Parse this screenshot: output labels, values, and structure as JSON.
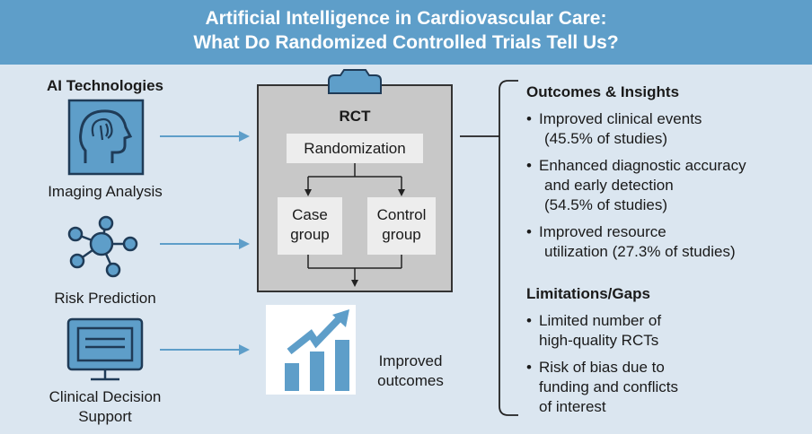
{
  "header": {
    "line1": "Artificial Intelligence in Cardiovascular Care:",
    "line2": "What Do Randomized Controlled Trials Tell Us?"
  },
  "left": {
    "heading": "AI Technologies",
    "items": [
      {
        "label": "Imaging Analysis",
        "icon": "head-brain-icon"
      },
      {
        "label": "Risk Prediction",
        "icon": "network-nodes-icon"
      },
      {
        "label": "Clinical Decision",
        "label2": "Support",
        "icon": "monitor-icon"
      }
    ]
  },
  "center": {
    "rct_title": "RCT",
    "randomization": "Randomization",
    "case_group": [
      "Case",
      "group"
    ],
    "control_group": [
      "Control",
      "group"
    ],
    "outcome_label": [
      "Improved",
      "outcomes"
    ]
  },
  "right": {
    "outcomes_heading": "Outcomes & Insights",
    "outcomes": [
      [
        "Improved clinical events",
        "(45.5% of studies)"
      ],
      [
        "Enhanced diagnostic accuracy",
        "and early detection",
        "(54.5% of studies)"
      ],
      [
        "Improved resource",
        "utilization (27.3% of studies)"
      ]
    ],
    "limitations_heading": "Limitations/Gaps",
    "limitations": [
      [
        "Limited number of",
        "high-quality RCTs"
      ],
      [
        "Risk of bias due to",
        "funding and conflicts",
        "of interest"
      ]
    ]
  },
  "colors": {
    "header_bg": "#5e9ec9",
    "page_bg": "#dbe6f0",
    "icon_fill": "#5e9ec9",
    "icon_stroke": "#1f3b57"
  }
}
